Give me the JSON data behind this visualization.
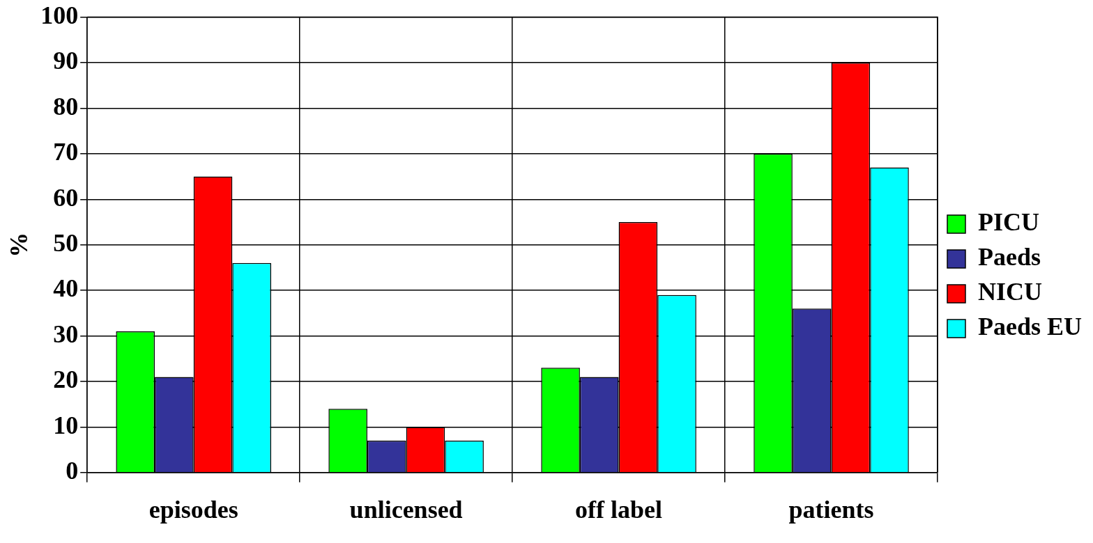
{
  "chart_data": {
    "type": "bar",
    "ylabel": "%",
    "categories": [
      "episodes",
      "unlicensed",
      "off label",
      "patients"
    ],
    "series": [
      {
        "name": "PICU",
        "color": "#00ff00",
        "values": [
          31,
          14,
          23,
          70
        ]
      },
      {
        "name": "Paeds",
        "color": "#333399",
        "values": [
          21,
          7,
          21,
          36
        ]
      },
      {
        "name": "NICU",
        "color": "#ff0000",
        "values": [
          65,
          10,
          55,
          90
        ]
      },
      {
        "name": "Paeds EU",
        "color": "#00ffff",
        "values": [
          46,
          7,
          39,
          67
        ]
      }
    ],
    "ylim": [
      0,
      100
    ],
    "yticks": [
      0,
      10,
      20,
      30,
      40,
      50,
      60,
      70,
      80,
      90,
      100
    ],
    "grid": true,
    "legend": "right"
  }
}
